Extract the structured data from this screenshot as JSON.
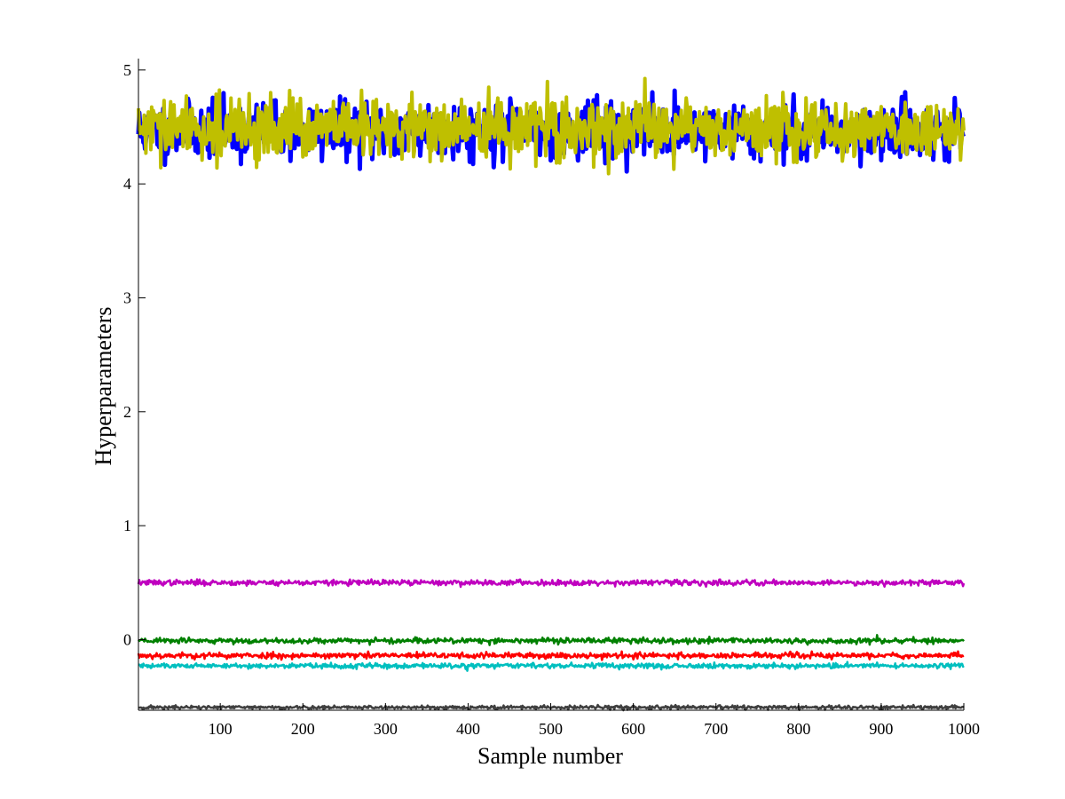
{
  "chart_data": {
    "type": "line",
    "title": "",
    "xlabel": "Sample number",
    "ylabel": "Hyperparameters",
    "xlim": [
      1,
      1000
    ],
    "ylim": [
      -0.62,
      5.1
    ],
    "xticks": [
      100,
      200,
      300,
      400,
      500,
      600,
      700,
      800,
      900,
      1000
    ],
    "yticks": [
      0,
      1,
      2,
      3,
      4,
      5
    ],
    "grid": false,
    "legend": "none",
    "series": [
      {
        "color": "#0000ff",
        "mean": 4.47,
        "noise": 0.12,
        "stroke": 5,
        "samples": 1000,
        "seed": 11
      },
      {
        "color": "#bfbf00",
        "mean": 4.48,
        "noise": 0.13,
        "stroke": 4,
        "samples": 1000,
        "seed": 29
      },
      {
        "color": "#bf00bf",
        "mean": 0.5,
        "noise": 0.012,
        "stroke": 2.5,
        "samples": 1000,
        "seed": 37
      },
      {
        "color": "#008000",
        "mean": -0.01,
        "noise": 0.012,
        "stroke": 2.5,
        "samples": 1000,
        "seed": 43
      },
      {
        "color": "#ff0000",
        "mean": -0.14,
        "noise": 0.013,
        "stroke": 2.5,
        "samples": 1000,
        "seed": 53
      },
      {
        "color": "#00bfbf",
        "mean": -0.23,
        "noise": 0.011,
        "stroke": 2.5,
        "samples": 1000,
        "seed": 61
      },
      {
        "color": "#404040",
        "mean": -0.595,
        "noise": 0.008,
        "stroke": 2.5,
        "samples": 1000,
        "seed": 71
      }
    ]
  }
}
